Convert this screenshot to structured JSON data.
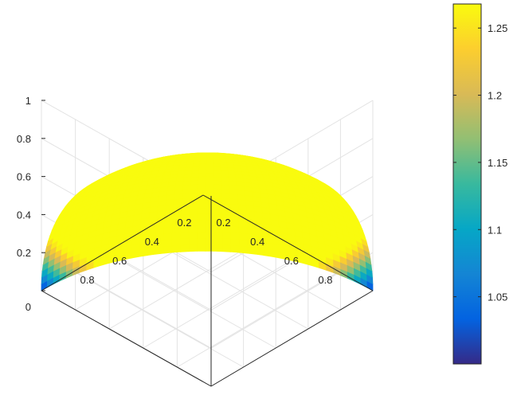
{
  "chart_data": {
    "type": "surface",
    "title": "",
    "xlabel": "",
    "ylabel": "",
    "zlabel": "",
    "surface": "octant of the unit sphere, color = x + y + z",
    "z_ticks": [
      "0",
      "0.2",
      "0.4",
      "0.6",
      "0.8",
      "1"
    ],
    "z_tick_values": [
      0,
      0.2,
      0.4,
      0.6,
      0.8,
      1
    ],
    "x_ticks": [
      "0.2",
      "0.4",
      "0.6",
      "0.8"
    ],
    "x_tick_values": [
      0.2,
      0.4,
      0.6,
      0.8
    ],
    "y_ticks": [
      "0.2",
      "0.4",
      "0.6",
      "0.8"
    ],
    "y_tick_values": [
      0.2,
      0.4,
      0.6,
      0.8
    ],
    "colorbar": {
      "range": [
        1.0,
        1.2679
      ],
      "ticks": [
        "1.05",
        "1.1",
        "1.15",
        "1.2",
        "1.25"
      ],
      "tick_values": [
        1.05,
        1.1,
        1.15,
        1.2,
        1.25
      ],
      "colormap": "parula"
    },
    "grid": true
  }
}
